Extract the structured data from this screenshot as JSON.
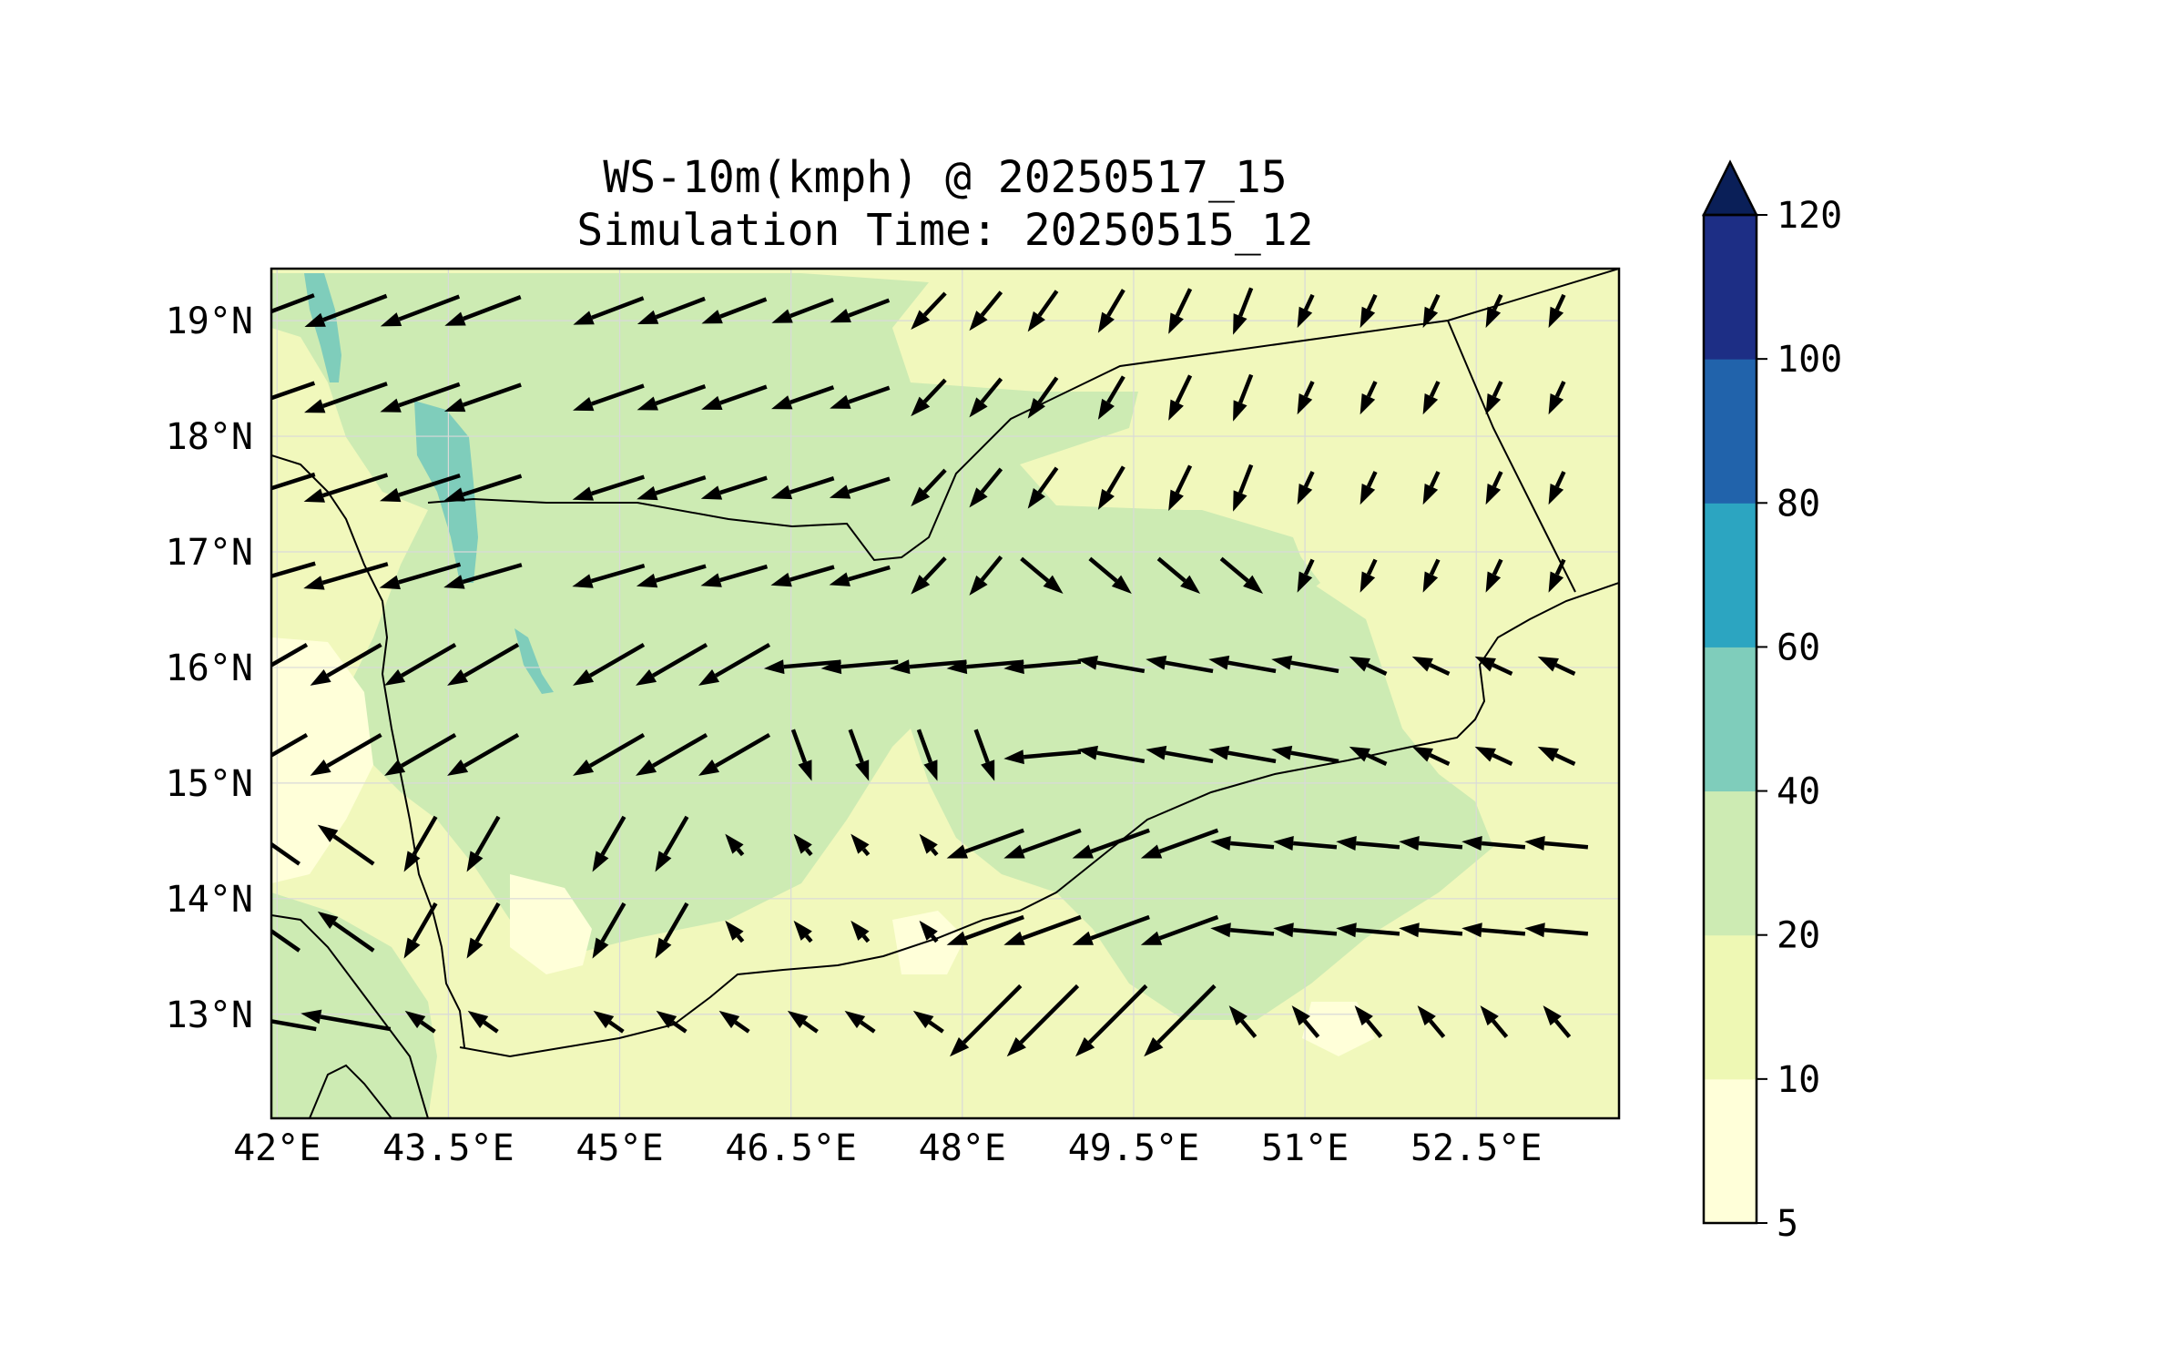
{
  "title": {
    "line1": "WS-10m(kmph) @ 20250517_15",
    "line2": "Simulation Time: 20250515_12"
  },
  "map": {
    "extent": {
      "lon": [
        41.95,
        53.75
      ],
      "lat": [
        12.1,
        19.45
      ]
    },
    "x_ticks": [
      42,
      43.5,
      45,
      46.5,
      48,
      49.5,
      51,
      52.5
    ],
    "x_tick_labels": [
      "42°E",
      "43.5°E",
      "45°E",
      "46.5°E",
      "48°E",
      "49.5°E",
      "51°E",
      "52.5°E"
    ],
    "y_ticks": [
      19,
      18,
      17,
      16,
      15,
      14,
      13
    ],
    "y_tick_labels": [
      "19°N",
      "18°N",
      "17°N",
      "16°N",
      "15°N",
      "14°N",
      "13°N"
    ],
    "grid": true,
    "base_fill_color": "#f1f8bc"
  },
  "colorbar": {
    "levels": [
      5,
      10,
      20,
      40,
      60,
      80,
      100,
      120
    ],
    "tick_labels": [
      "5",
      "10",
      "20",
      "40",
      "60",
      "80",
      "100",
      "120"
    ],
    "colors": [
      "#ffffd9",
      "#eef8b4",
      "#cdebb3",
      "#7fcdbb",
      "#2ca5c1",
      "#2163ab",
      "#1d2e85"
    ],
    "extend_color": "#0a1f58",
    "extend": "max"
  },
  "quiver": {
    "columns_lon": [
      41.95,
      42.6,
      43.25,
      43.8,
      44.9,
      45.45,
      46,
      46.6,
      47.1,
      47.7,
      48.2,
      48.7,
      49.3,
      49.9,
      50.45,
      51,
      51.55,
      52.1,
      52.65,
      53.2
    ],
    "rows_lat": [
      19.08,
      18.33,
      17.55,
      16.79,
      16.02,
      15.24,
      14.47,
      13.72,
      12.94
    ],
    "color": "#000000"
  }
}
